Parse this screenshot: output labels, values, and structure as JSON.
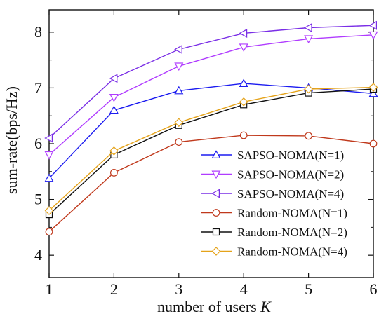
{
  "chart_data": {
    "type": "line",
    "x": [
      1,
      2,
      3,
      4,
      5,
      6
    ],
    "xlabel": "number of users",
    "xlabel_var": "K",
    "ylabel": "sum-rate(bps/Hz)",
    "xlim": [
      1,
      6
    ],
    "ylim": [
      3.6,
      8.4
    ],
    "xticks": [
      "1",
      "2",
      "3",
      "4",
      "5",
      "6"
    ],
    "yticks": [
      "4",
      "5",
      "6",
      "7",
      "8"
    ],
    "ytick_values": [
      4,
      5,
      6,
      7,
      8
    ],
    "grid": false,
    "legend_position": "bottom-right",
    "series": [
      {
        "name": "SAPSO-NOMA(N=1)",
        "color": "#1c1cf0",
        "marker": "triangle-up",
        "values": [
          5.38,
          6.6,
          6.95,
          7.08,
          7.0,
          6.9
        ]
      },
      {
        "name": "SAPSO-NOMA(N=2)",
        "color": "#b03cff",
        "marker": "triangle-down",
        "values": [
          5.8,
          6.83,
          7.39,
          7.73,
          7.88,
          7.95
        ]
      },
      {
        "name": "SAPSO-NOMA(N=4)",
        "color": "#7a2ee6",
        "marker": "triangle-left",
        "values": [
          6.1,
          7.17,
          7.69,
          7.98,
          8.08,
          8.12
        ]
      },
      {
        "name": "Random-NOMA(N=1)",
        "color": "#c0391c",
        "marker": "circle",
        "values": [
          4.42,
          5.48,
          6.03,
          6.15,
          6.14,
          6.0
        ]
      },
      {
        "name": "Random-NOMA(N=2)",
        "color": "#111111",
        "marker": "square",
        "values": [
          4.73,
          5.8,
          6.33,
          6.7,
          6.91,
          6.98
        ]
      },
      {
        "name": "Random-NOMA(N=4)",
        "color": "#e5a31a",
        "marker": "diamond",
        "values": [
          4.8,
          5.87,
          6.38,
          6.75,
          6.98,
          7.01
        ]
      }
    ]
  }
}
